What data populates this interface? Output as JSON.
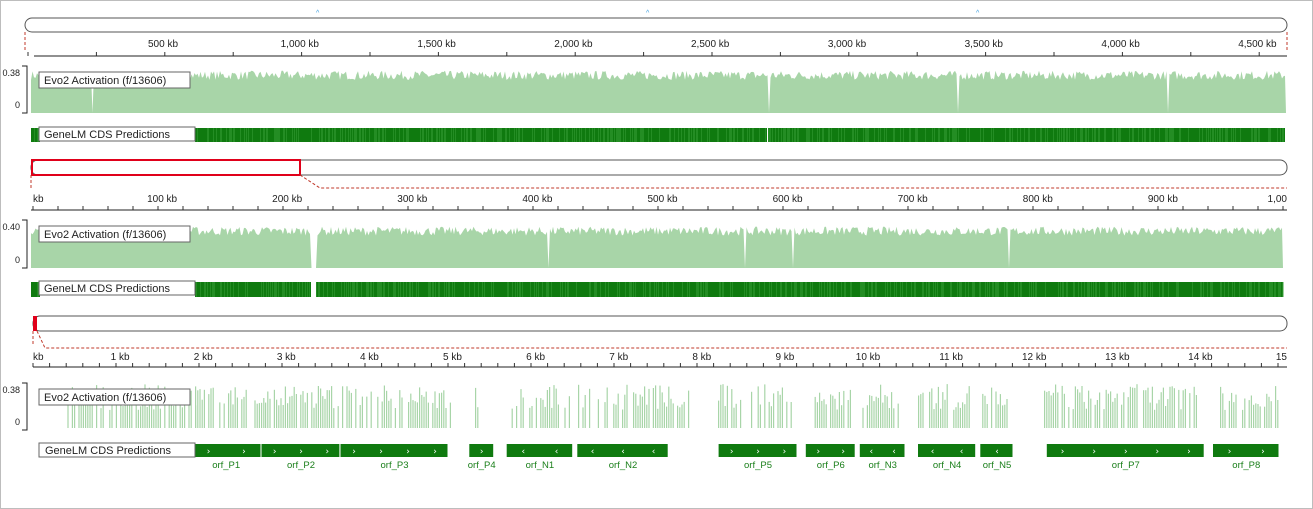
{
  "tracks": {
    "activation_label": "Evo2 Activation (f/13606)",
    "cds_label": "GeneLM CDS Predictions"
  },
  "colors": {
    "activation": "#a8d5a8",
    "cds": "#0f7a0f",
    "highlight": "#e0001a",
    "link": "#c0392b",
    "marker": "#3fa0e0"
  },
  "panels": [
    {
      "id": "genome",
      "ticks": [
        "500 kb",
        "1,000 kb",
        "1,500 kb",
        "2,000 kb",
        "2,500 kb",
        "3,000 kb",
        "3,500 kb",
        "4,000 kb",
        "4,500 kb"
      ],
      "y_max": "0.38",
      "y_min": "0"
    },
    {
      "id": "zoom-1mb",
      "ticks": [
        "kb",
        "100 kb",
        "200 kb",
        "300 kb",
        "400 kb",
        "500 kb",
        "600 kb",
        "700 kb",
        "800 kb",
        "900 kb",
        "1,00"
      ],
      "y_max": "0.40",
      "y_min": "0"
    },
    {
      "id": "zoom-15kb",
      "ticks": [
        "kb",
        "1 kb",
        "2 kb",
        "3 kb",
        "4 kb",
        "5 kb",
        "6 kb",
        "7 kb",
        "8 kb",
        "9 kb",
        "10 kb",
        "11 kb",
        "12 kb",
        "13 kb",
        "14 kb",
        "15"
      ],
      "y_max": "0.38",
      "y_min": "0"
    }
  ],
  "orfs": [
    {
      "name": "orf_P1",
      "strand": "+",
      "start_kb": 1.9,
      "end_kb": 2.75
    },
    {
      "name": "orf_P2",
      "strand": "+",
      "start_kb": 2.75,
      "end_kb": 3.7
    },
    {
      "name": "orf_P3",
      "strand": "+",
      "start_kb": 3.7,
      "end_kb": 5.0
    },
    {
      "name": "orf_P4",
      "strand": "+",
      "start_kb": 5.25,
      "end_kb": 5.55
    },
    {
      "name": "orf_N1",
      "strand": "-",
      "start_kb": 5.7,
      "end_kb": 6.5
    },
    {
      "name": "orf_N2",
      "strand": "-",
      "start_kb": 6.55,
      "end_kb": 7.65
    },
    {
      "name": "orf_P5",
      "strand": "+",
      "start_kb": 8.25,
      "end_kb": 9.2
    },
    {
      "name": "orf_P6",
      "strand": "+",
      "start_kb": 9.3,
      "end_kb": 9.9
    },
    {
      "name": "orf_N3",
      "strand": "-",
      "start_kb": 9.95,
      "end_kb": 10.5
    },
    {
      "name": "orf_N4",
      "strand": "-",
      "start_kb": 10.65,
      "end_kb": 11.35
    },
    {
      "name": "orf_N5",
      "strand": "-",
      "start_kb": 11.4,
      "end_kb": 11.8
    },
    {
      "name": "orf_P7",
      "strand": "+",
      "start_kb": 12.2,
      "end_kb": 14.1
    },
    {
      "name": "orf_P8",
      "strand": "+",
      "start_kb": 14.2,
      "end_kb": 15.0
    }
  ]
}
